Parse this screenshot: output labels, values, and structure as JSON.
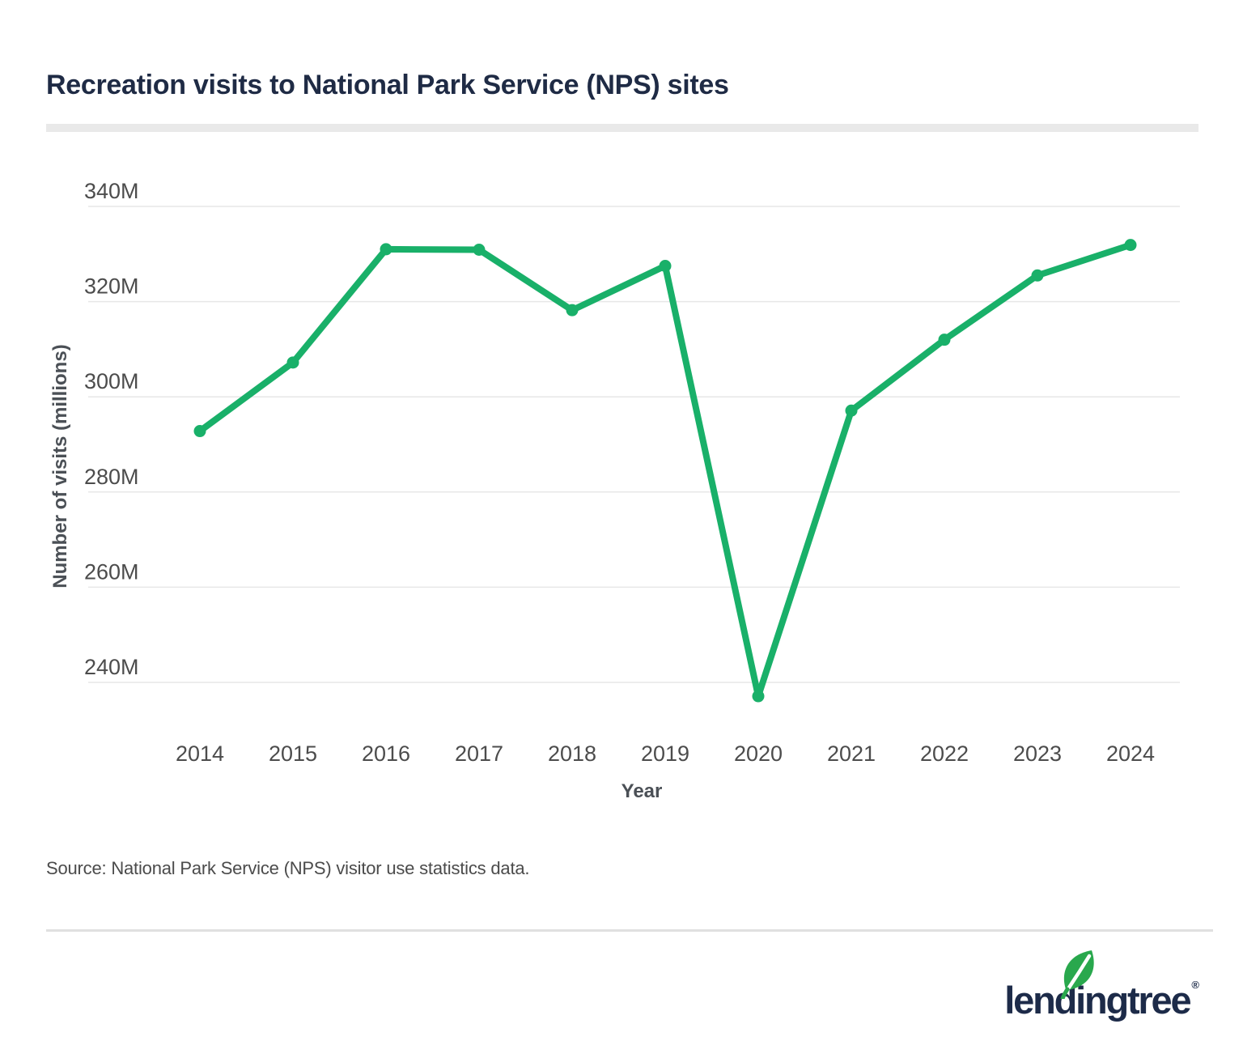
{
  "header": {
    "title": "Recreation visits to National Park Service (NPS) sites"
  },
  "chart_data": {
    "type": "line",
    "title": "Recreation visits to National Park Service (NPS) sites",
    "xlabel": "Year",
    "ylabel": "Number of visits (millions)",
    "x": [
      "2014",
      "2015",
      "2016",
      "2017",
      "2018",
      "2019",
      "2020",
      "2021",
      "2022",
      "2023",
      "2024"
    ],
    "series": [
      {
        "name": "Recreation visits",
        "values": [
          292.8,
          307.2,
          331.0,
          330.9,
          318.2,
          327.5,
          237.1,
          297.1,
          312.0,
          325.5,
          331.9
        ]
      }
    ],
    "yticks": [
      340,
      320,
      300,
      280,
      260,
      240
    ],
    "ytick_suffix": "M",
    "ylim": [
      230,
      345
    ],
    "grid": "horizontal",
    "legend": "none"
  },
  "footer": {
    "source": "Source: National Park Service (NPS) visitor use statistics data.",
    "logo_text": "lendingtree",
    "logo_reg": "®"
  },
  "colors": {
    "line_green": "#19b069",
    "leaf_green": "#29a84d",
    "navy": "#1f2b45",
    "grid": "#e7e7e7",
    "tick_text": "#4c4c4c",
    "axis_title_text": "#4b5056"
  }
}
